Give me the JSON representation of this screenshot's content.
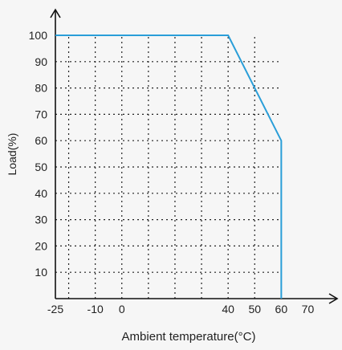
{
  "chart_data": {
    "type": "line",
    "title": "",
    "xlabel": "Ambient temperature(°C)",
    "ylabel": "Load(%)",
    "xlim": [
      -25,
      75
    ],
    "ylim": [
      0,
      100
    ],
    "x_ticks": [
      -25,
      -10,
      0,
      40,
      50,
      60,
      70
    ],
    "x_tick_labels": [
      "-25",
      "-10",
      "0",
      "40",
      "50",
      "60",
      "70"
    ],
    "y_ticks": [
      10,
      20,
      30,
      40,
      50,
      60,
      70,
      80,
      90,
      100
    ],
    "y_tick_labels": [
      "10",
      "20",
      "30",
      "40",
      "50",
      "60",
      "70",
      "80",
      "90",
      "100"
    ],
    "grid": "dotted",
    "colors": {
      "series": "#2a9ed8",
      "axis": "#111111",
      "grid": "#222222"
    },
    "series": [
      {
        "x": [
          -25,
          40,
          60,
          60
        ],
        "y": [
          100,
          100,
          60,
          0
        ]
      }
    ]
  }
}
